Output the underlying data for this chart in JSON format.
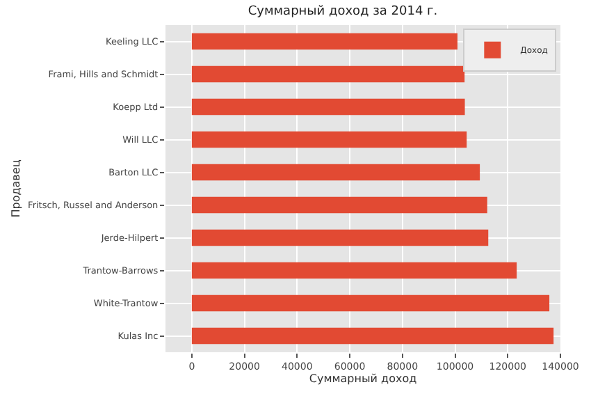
{
  "chart_data": {
    "type": "bar",
    "orientation": "horizontal",
    "title": "Суммарный доход за 2014 г.",
    "xlabel": "Суммарный доход",
    "ylabel": "Продавец",
    "categories": [
      "Keeling LLC",
      "Frami, Hills and Schmidt",
      "Koepp Ltd",
      "Will LLC",
      "Barton LLC",
      "Fritsch, Russel and Anderson",
      "Jerde-Hilpert",
      "Trantow-Barrows",
      "White-Trantow",
      "Kulas Inc"
    ],
    "series": [
      {
        "name": "Доход",
        "color": "#e24a33",
        "values": [
          100900,
          103600,
          103700,
          104400,
          109400,
          112200,
          112600,
          123400,
          135800,
          137400
        ]
      }
    ],
    "xlim": [
      -10000,
      140000
    ],
    "xticks": [
      0,
      20000,
      40000,
      60000,
      80000,
      100000,
      120000,
      140000
    ],
    "grid": true,
    "legend": "top right"
  }
}
